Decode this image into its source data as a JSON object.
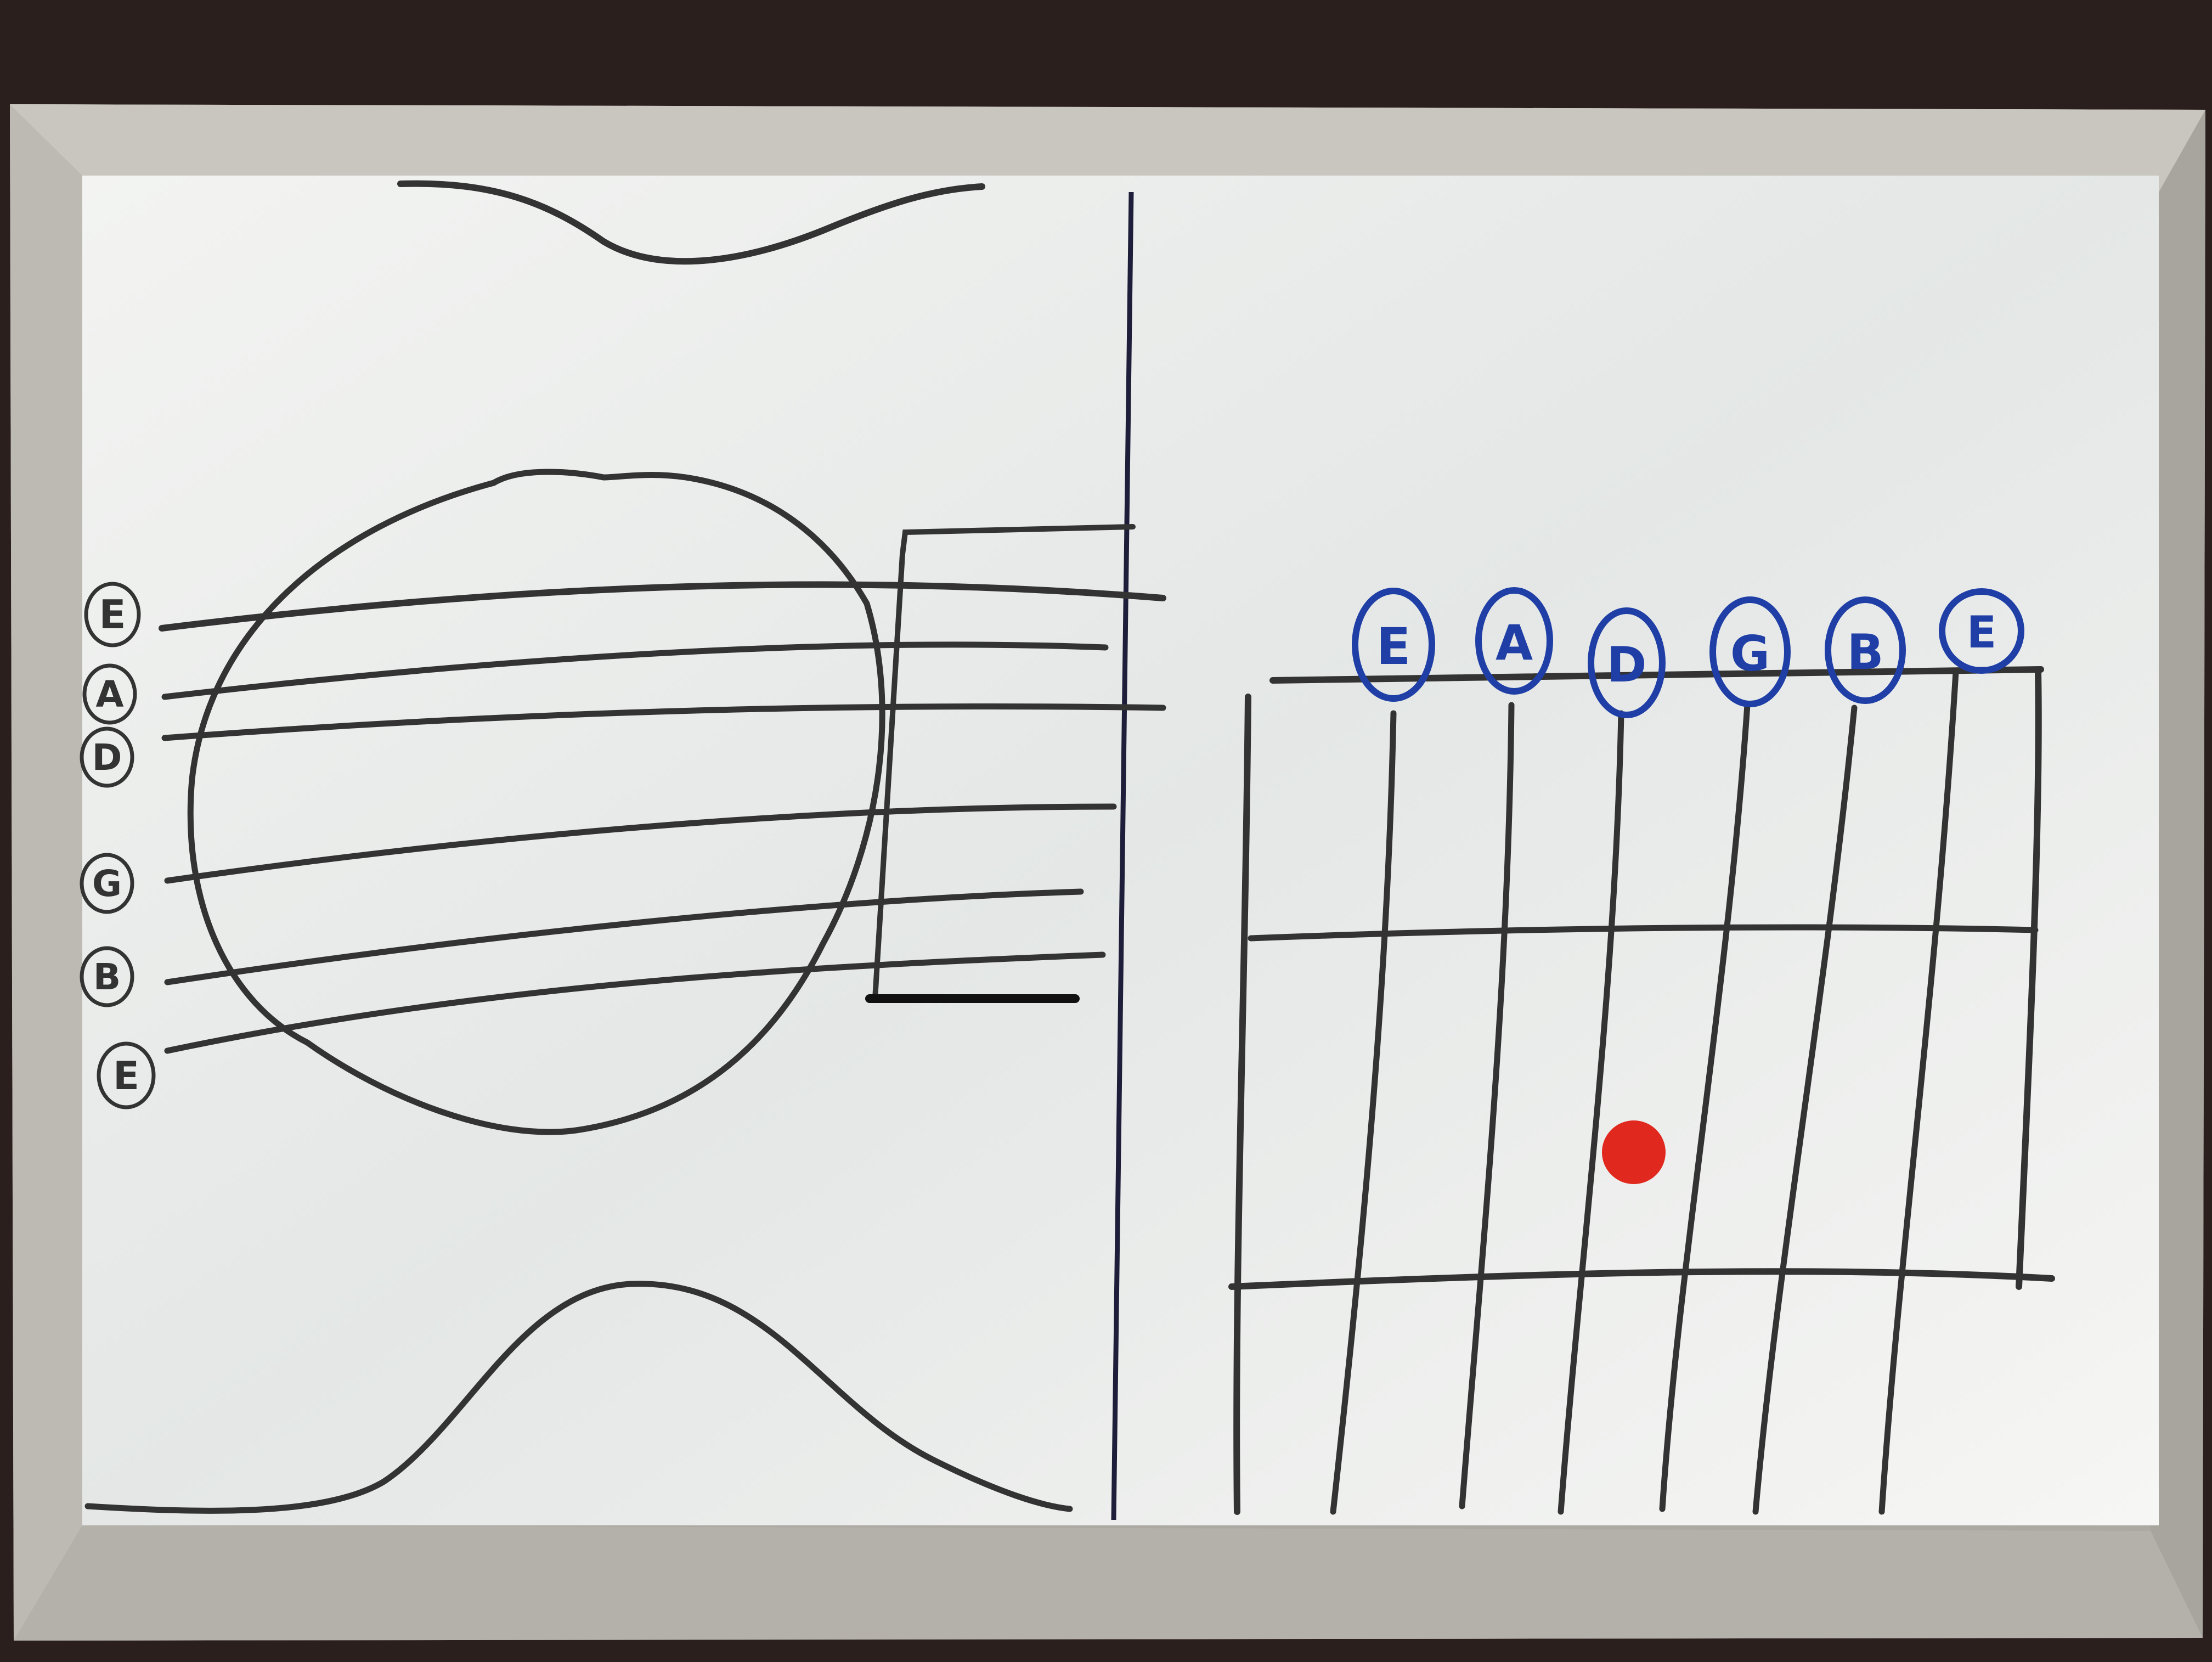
{
  "photo": {
    "background_color": "#2a1f1d",
    "frame_color": "#b9b6b0",
    "board_color": "#eceeec",
    "marker_black": "#2f2f2f",
    "marker_blue": "#1f3fa6",
    "marker_red": "#e0281e"
  },
  "left_panel": {
    "string_labels": [
      "E",
      "A",
      "D",
      "G",
      "B",
      "E"
    ]
  },
  "right_panel": {
    "string_labels": [
      "E",
      "A",
      "D",
      "G",
      "B",
      "E"
    ],
    "fret_dot": {
      "string": "D",
      "fret": 2
    }
  }
}
